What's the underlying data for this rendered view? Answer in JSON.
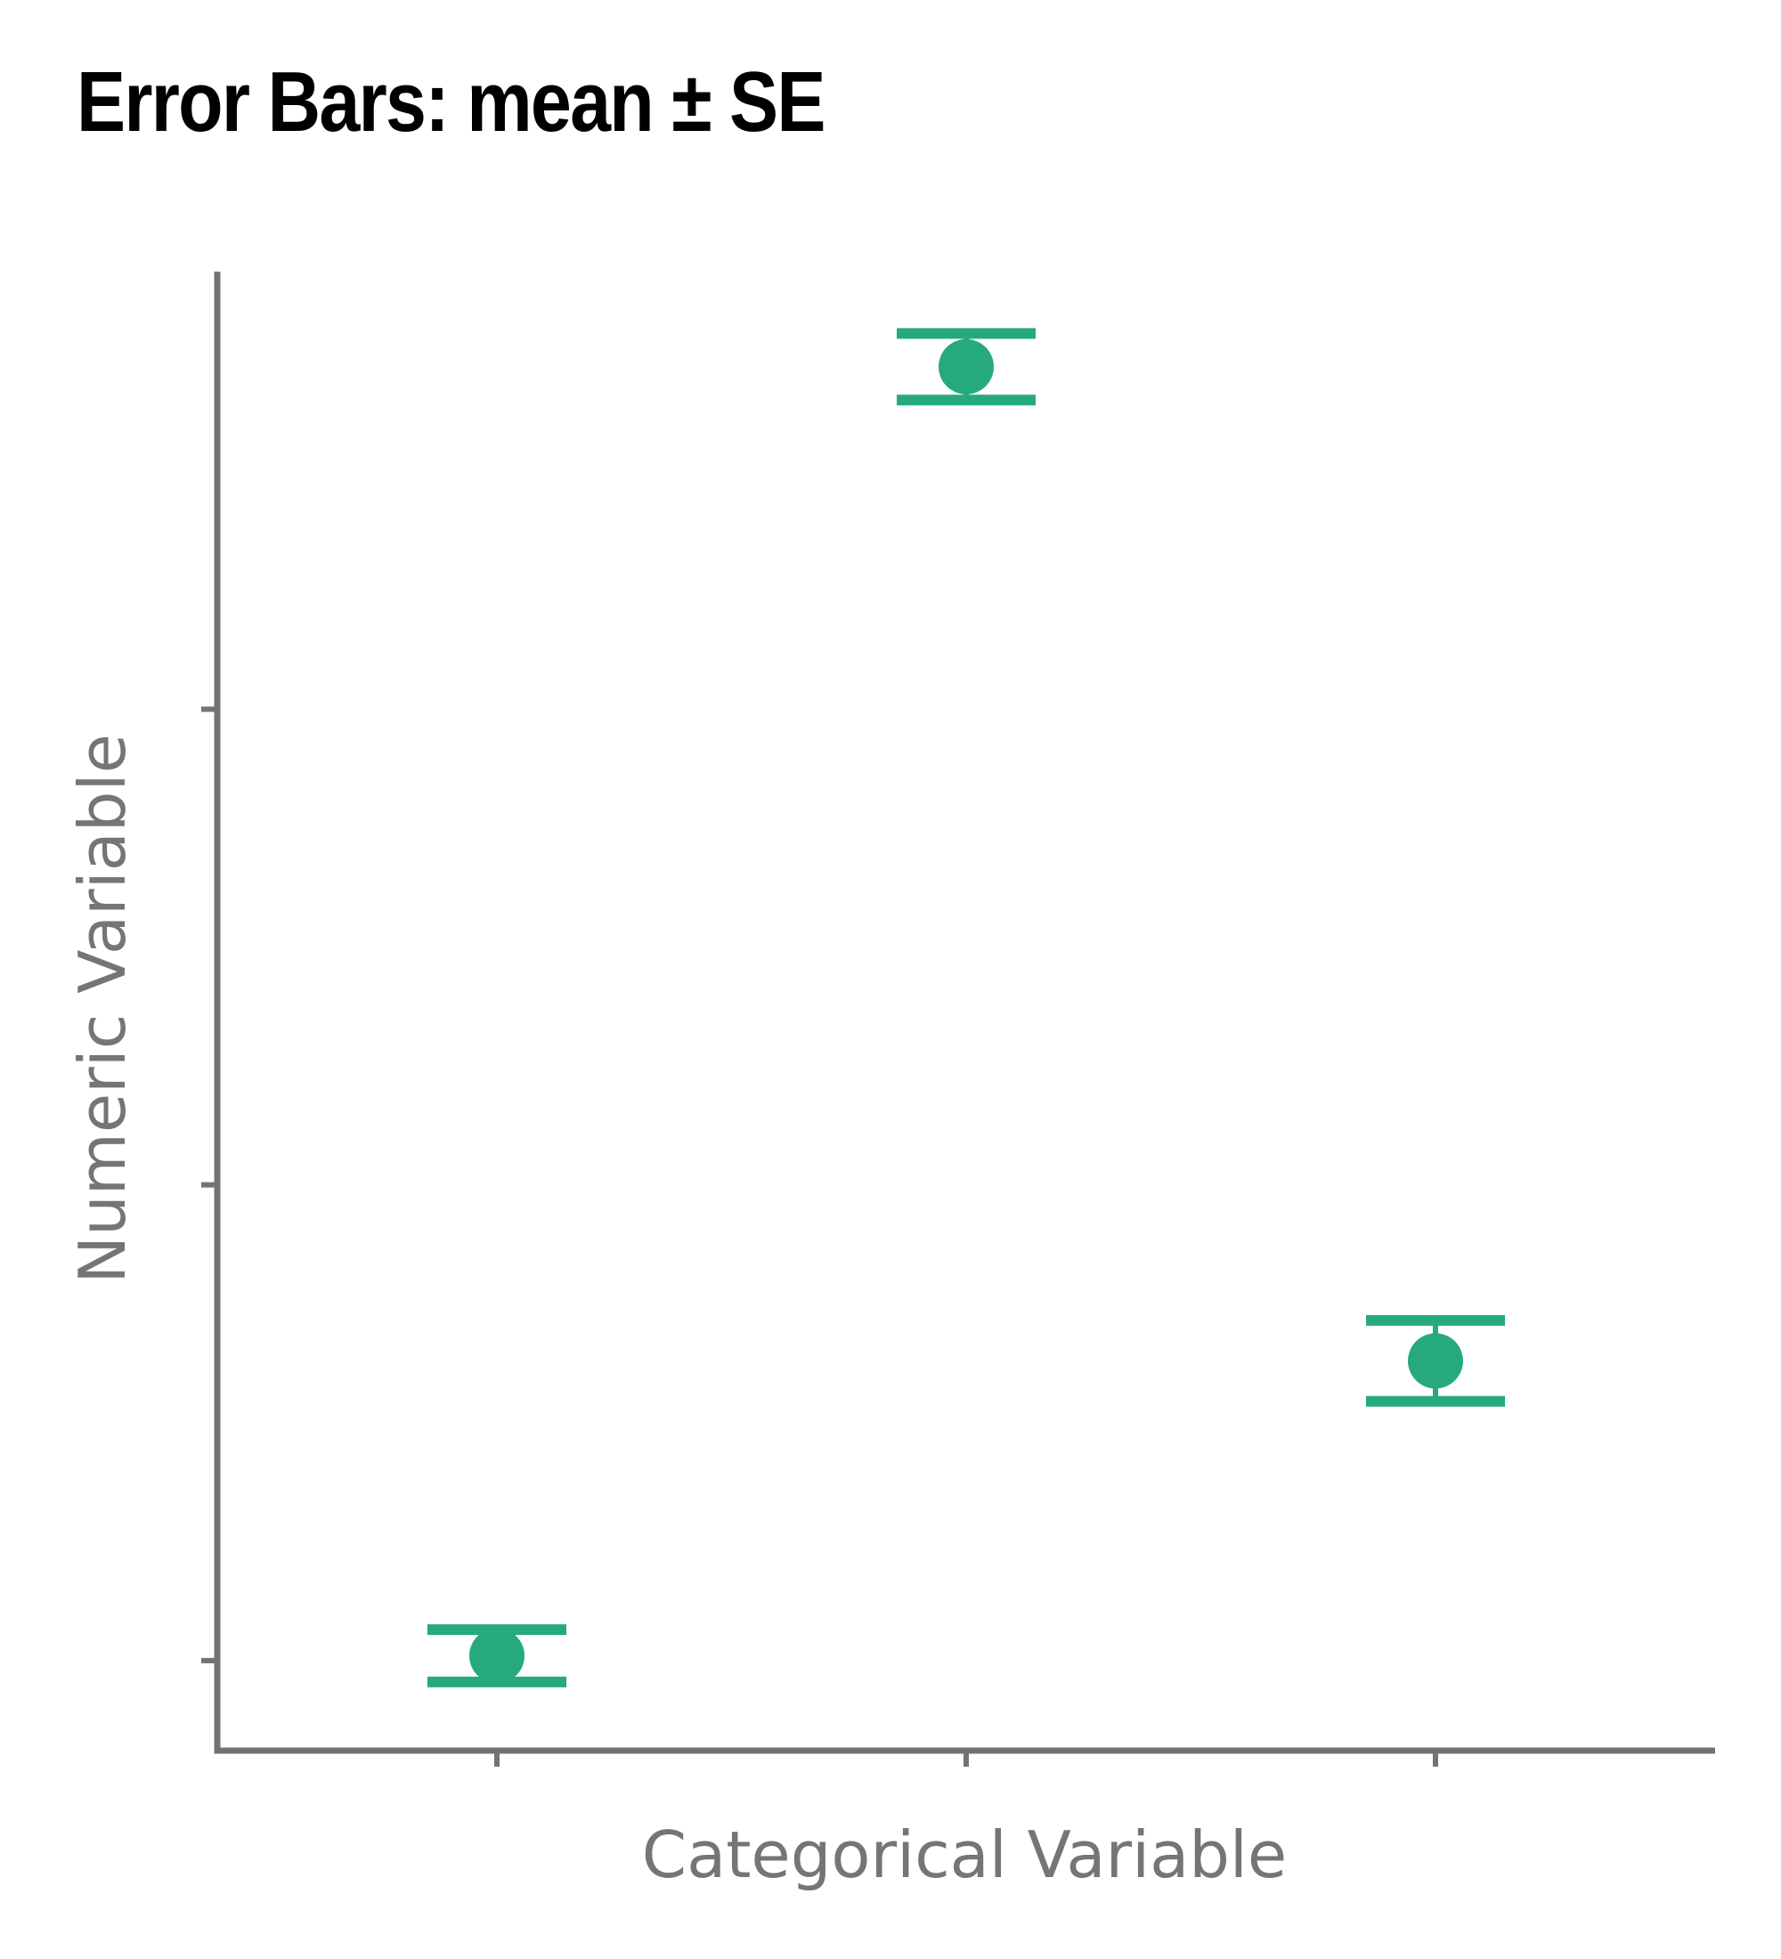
{
  "chart_data": {
    "type": "scatter",
    "title": "Error Bars: mean ± SE",
    "xlabel": "Categorical Variable",
    "ylabel": "Numeric Variable",
    "categories": [
      "",
      "",
      ""
    ],
    "x_ticks": 3,
    "y_ticks": [
      1,
      2,
      3
    ],
    "ylim": [
      0.82,
      3.92
    ],
    "series": [
      {
        "points": [
          {
            "category_index": 0,
            "mean": 1.01,
            "se": 0.055
          },
          {
            "category_index": 1,
            "mean": 3.72,
            "se": 0.07
          },
          {
            "category_index": 2,
            "mean": 1.63,
            "se": 0.085
          }
        ]
      }
    ],
    "grid": false,
    "legend": "none",
    "colors": {
      "series": "#27AA7B",
      "axis": "#737373",
      "title": "#000000"
    }
  }
}
